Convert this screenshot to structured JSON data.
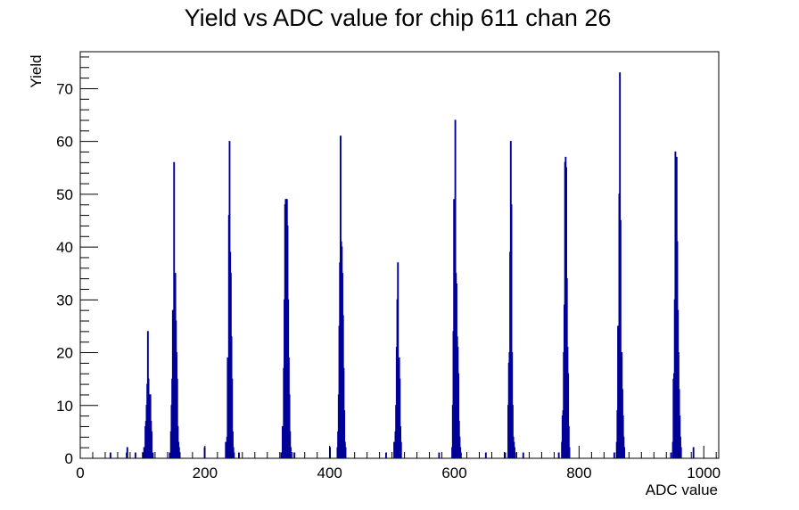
{
  "chart_data": {
    "type": "bar",
    "title": "Yield vs ADC value for chip 611 chan 26",
    "xlabel": "ADC value",
    "ylabel": "Yield",
    "xlim": [
      0,
      1024
    ],
    "ylim": [
      0,
      77
    ],
    "x_ticks": [
      0,
      200,
      400,
      600,
      800,
      1000
    ],
    "y_ticks": [
      0,
      10,
      20,
      30,
      40,
      50,
      60,
      70
    ],
    "grid": false,
    "line_color": "#000099",
    "series": [
      {
        "values": [
          [
            48,
            1
          ],
          [
            74,
            1
          ],
          [
            75,
            2
          ],
          [
            88,
            1
          ],
          [
            100,
            1
          ],
          [
            102,
            2
          ],
          [
            103,
            2
          ],
          [
            104,
            6
          ],
          [
            105,
            7
          ],
          [
            106,
            10
          ],
          [
            107,
            14
          ],
          [
            108,
            24
          ],
          [
            109,
            15
          ],
          [
            110,
            11
          ],
          [
            111,
            12
          ],
          [
            112,
            12
          ],
          [
            113,
            7
          ],
          [
            114,
            5
          ],
          [
            115,
            1
          ],
          [
            116,
            1
          ],
          [
            143,
            1
          ],
          [
            145,
            5
          ],
          [
            146,
            10
          ],
          [
            147,
            15
          ],
          [
            148,
            28
          ],
          [
            149,
            27
          ],
          [
            150,
            56
          ],
          [
            151,
            35
          ],
          [
            152,
            35
          ],
          [
            153,
            26
          ],
          [
            154,
            20
          ],
          [
            155,
            15
          ],
          [
            156,
            6
          ],
          [
            157,
            3
          ],
          [
            158,
            2
          ],
          [
            159,
            1
          ],
          [
            199,
            2
          ],
          [
            233,
            3
          ],
          [
            235,
            4
          ],
          [
            236,
            19
          ],
          [
            237,
            15
          ],
          [
            238,
            46
          ],
          [
            239,
            60
          ],
          [
            240,
            39
          ],
          [
            241,
            35
          ],
          [
            242,
            23
          ],
          [
            243,
            15
          ],
          [
            244,
            5
          ],
          [
            245,
            2
          ],
          [
            246,
            1
          ],
          [
            254,
            1
          ],
          [
            322,
            1
          ],
          [
            324,
            6
          ],
          [
            326,
            17
          ],
          [
            327,
            30
          ],
          [
            328,
            48
          ],
          [
            329,
            49
          ],
          [
            330,
            49
          ],
          [
            331,
            49
          ],
          [
            332,
            44
          ],
          [
            333,
            30
          ],
          [
            334,
            19
          ],
          [
            335,
            12
          ],
          [
            336,
            5
          ],
          [
            337,
            2
          ],
          [
            343,
            1
          ],
          [
            400,
            2
          ],
          [
            412,
            2
          ],
          [
            413,
            5
          ],
          [
            414,
            12
          ],
          [
            415,
            25
          ],
          [
            416,
            37
          ],
          [
            417,
            61
          ],
          [
            418,
            41
          ],
          [
            419,
            40
          ],
          [
            420,
            35
          ],
          [
            421,
            27
          ],
          [
            422,
            17
          ],
          [
            423,
            9
          ],
          [
            424,
            3
          ],
          [
            425,
            2
          ],
          [
            490,
            1
          ],
          [
            503,
            3
          ],
          [
            505,
            5
          ],
          [
            506,
            10
          ],
          [
            507,
            21
          ],
          [
            508,
            30
          ],
          [
            509,
            37
          ],
          [
            510,
            19
          ],
          [
            511,
            19
          ],
          [
            512,
            15
          ],
          [
            513,
            6
          ],
          [
            514,
            3
          ],
          [
            575,
            1
          ],
          [
            596,
            2
          ],
          [
            597,
            10
          ],
          [
            598,
            24
          ],
          [
            599,
            49
          ],
          [
            600,
            25
          ],
          [
            601,
            64
          ],
          [
            602,
            35
          ],
          [
            603,
            33
          ],
          [
            604,
            23
          ],
          [
            605,
            21
          ],
          [
            606,
            16
          ],
          [
            607,
            7
          ],
          [
            608,
            4
          ],
          [
            609,
            2
          ],
          [
            610,
            1
          ],
          [
            650,
            1
          ],
          [
            681,
            1
          ],
          [
            686,
            10
          ],
          [
            687,
            18
          ],
          [
            688,
            20
          ],
          [
            689,
            39
          ],
          [
            690,
            60
          ],
          [
            691,
            48
          ],
          [
            692,
            20
          ],
          [
            693,
            10
          ],
          [
            694,
            4
          ],
          [
            695,
            3
          ],
          [
            696,
            2
          ],
          [
            697,
            1
          ],
          [
            710,
            1
          ],
          [
            767,
            1
          ],
          [
            772,
            3
          ],
          [
            773,
            8
          ],
          [
            774,
            9
          ],
          [
            775,
            20
          ],
          [
            776,
            29
          ],
          [
            777,
            56
          ],
          [
            778,
            57
          ],
          [
            779,
            55
          ],
          [
            780,
            34
          ],
          [
            781,
            21
          ],
          [
            782,
            16
          ],
          [
            783,
            6
          ],
          [
            784,
            2
          ],
          [
            856,
            1
          ],
          [
            860,
            3
          ],
          [
            861,
            9
          ],
          [
            862,
            25
          ],
          [
            863,
            20
          ],
          [
            864,
            50
          ],
          [
            865,
            73
          ],
          [
            866,
            45
          ],
          [
            867,
            18
          ],
          [
            868,
            20
          ],
          [
            869,
            13
          ],
          [
            870,
            8
          ],
          [
            871,
            4
          ],
          [
            872,
            2
          ],
          [
            947,
            1
          ],
          [
            950,
            3
          ],
          [
            951,
            15
          ],
          [
            952,
            16
          ],
          [
            953,
            30
          ],
          [
            954,
            58
          ],
          [
            955,
            56
          ],
          [
            956,
            57
          ],
          [
            957,
            41
          ],
          [
            958,
            28
          ],
          [
            959,
            20
          ],
          [
            960,
            13
          ],
          [
            961,
            8
          ],
          [
            962,
            4
          ],
          [
            963,
            2
          ],
          [
            983,
            2
          ]
        ]
      }
    ]
  }
}
